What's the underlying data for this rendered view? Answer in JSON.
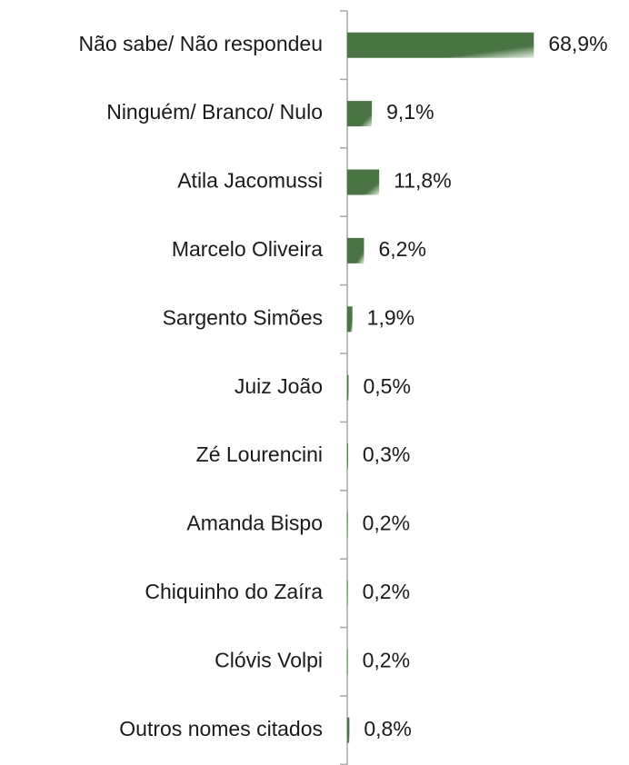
{
  "chart_data": {
    "type": "barh",
    "categories": [
      "Não sabe/ Não respondeu",
      "Ninguém/ Branco/ Nulo",
      "Atila Jacomussi",
      "Marcelo Oliveira",
      "Sargento Simões",
      "Juiz João",
      "Zé Lourencini",
      "Amanda Bispo",
      "Chiquinho do Zaíra",
      "Clóvis Volpi",
      "Outros nomes citados"
    ],
    "values": [
      68.9,
      9.1,
      11.8,
      6.2,
      1.9,
      0.5,
      0.3,
      0.2,
      0.2,
      0.2,
      0.8
    ],
    "value_labels": [
      "68,9%",
      "9,1%",
      "11,8%",
      "6,2%",
      "1,9%",
      "0,5%",
      "0,3%",
      "0,2%",
      "0,2%",
      "0,2%",
      "0,8%"
    ],
    "color": "#4a7444",
    "xlim": [
      0,
      100
    ]
  }
}
